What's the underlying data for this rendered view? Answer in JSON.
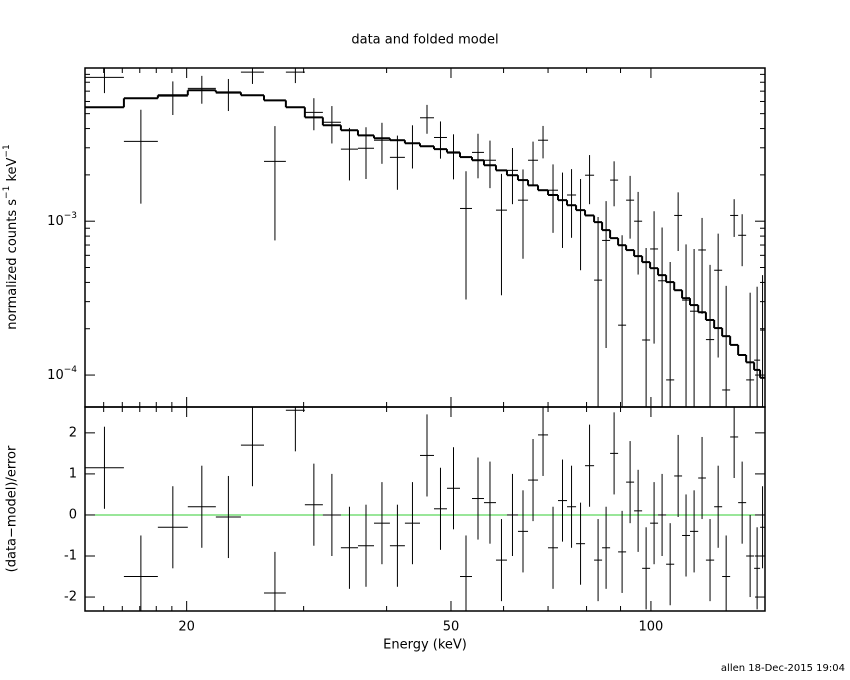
{
  "chart_data": [
    {
      "type": "errorbar",
      "title": "data and folded model",
      "ylabel": [
        "normalized counts s",
        "−1",
        " keV",
        "−1"
      ],
      "ylabel_superscript": [
        false,
        true,
        false,
        true
      ],
      "xscale": "log",
      "yscale": "log",
      "xlim": [
        14.06,
        148.5
      ],
      "ylim": [
        6.2e-05,
        0.0099
      ],
      "yticks": [
        {
          "value": 0.0001,
          "label": "10",
          "exponent": "−4"
        },
        {
          "value": 0.001,
          "label": "10",
          "exponent": "−3"
        }
      ],
      "yticks_minor": [
        0.0002,
        0.0003,
        0.0004,
        0.0005,
        0.0006,
        0.0007,
        0.0008,
        0.0009,
        0.002,
        0.003,
        0.004,
        0.005,
        0.006,
        0.007,
        0.008,
        0.009
      ],
      "color": "#000000",
      "model_color": "#000000",
      "bin_edges": [
        14.06,
        16.09,
        18.1,
        20.08,
        22.13,
        24.14,
        26.15,
        28.21,
        30.13,
        32.07,
        34.14,
        36.22,
        38.29,
        40.46,
        42.62,
        44.91,
        47.14,
        49.31,
        51.59,
        53.78,
        56.06,
        58.44,
        60.71,
        63.07,
        65.31,
        67.61,
        70.0,
        72.46,
        74.76,
        77.14,
        79.58,
        82.11,
        84.42,
        86.8,
        89.24,
        91.75,
        94.33,
        96.99,
        99.71,
        102.5,
        105.4,
        108.4,
        111.4,
        114.5,
        117.8,
        121.0,
        124.5,
        128.0,
        131.6,
        135.3,
        139.1,
        143.0,
        146.0,
        148.5
      ],
      "values": [
        0.0086,
        0.0033,
        0.0065,
        0.0073,
        0.0068,
        0.0093,
        0.00245,
        0.0093,
        0.0051,
        0.0044,
        0.00294,
        0.00298,
        0.00336,
        0.0026,
        0.0032,
        0.0047,
        0.0035,
        0.00277,
        0.00121,
        0.0028,
        0.00249,
        0.00118,
        0.00214,
        0.00137,
        0.00249,
        0.00336,
        0.00159,
        0.00137,
        0.00148,
        0.00118,
        0.00199,
        0.000414,
        0.00075,
        0.00185,
        0.000211,
        0.00137,
        0.001,
        0.000169,
        0.00066,
        0.00041,
        9.3e-05,
        0.00109,
        0.000307,
        0.00026,
        0.00065,
        0.00017,
        0.00048,
        8e-05,
        0.00109,
        0.00081,
        9.3e-05,
        0.000125,
        0.000196
      ],
      "errors": [
        0.0018,
        0.002,
        0.0016,
        0.0015,
        0.0016,
        0.0015,
        0.0017,
        0.0014,
        0.0012,
        0.0012,
        0.0011,
        0.0011,
        0.001,
        0.001,
        0.001,
        0.001,
        0.00095,
        0.0009,
        0.0009,
        0.0009,
        0.00085,
        0.00085,
        0.00085,
        0.0008,
        0.0008,
        0.0008,
        0.00075,
        0.0007,
        0.0007,
        0.0007,
        0.0007,
        0.00065,
        0.0006,
        0.0006,
        0.0006,
        0.0006,
        0.00055,
        0.0005,
        0.0005,
        0.0005,
        0.00045,
        0.00045,
        0.0004,
        0.0004,
        0.0004,
        0.00035,
        0.00035,
        0.0003,
        0.0003,
        0.0003,
        0.00025,
        0.00025,
        0.00025
      ],
      "model_values": [
        0.0055,
        0.00629,
        0.00658,
        0.00709,
        0.00688,
        0.00658,
        0.0061,
        0.0055,
        0.00473,
        0.0042,
        0.0039,
        0.00361,
        0.00346,
        0.00336,
        0.00321,
        0.00307,
        0.00294,
        0.0028,
        0.00261,
        0.00249,
        0.00231,
        0.00214,
        0.00199,
        0.00185,
        0.00171,
        0.00159,
        0.00148,
        0.00137,
        0.00127,
        0.00118,
        0.00109,
        0.000986,
        0.000875,
        0.000776,
        0.000698,
        0.000649,
        0.000593,
        0.000542,
        0.000495,
        0.000446,
        0.000402,
        0.000356,
        0.000316,
        0.000285,
        0.000256,
        0.000228,
        0.000202,
        0.000179,
        0.000157,
        0.000135,
        0.000121,
        0.000108,
        9.6e-05
      ]
    },
    {
      "type": "errorbar",
      "xlabel": "Energy (keV)",
      "ylabel": "(data−model)/error",
      "xscale": "log",
      "xlim": [
        14.06,
        148.5
      ],
      "ylim": [
        -2.34,
        2.63
      ],
      "xticks": [
        20,
        50,
        100
      ],
      "xticks_minor": [
        15,
        16,
        17,
        18,
        19,
        30,
        40,
        60,
        70,
        80,
        90
      ],
      "yticks": [
        -2,
        -1,
        0,
        1,
        2
      ],
      "color": "#000000",
      "reference_line": 0,
      "reference_color": "#33cc33",
      "bin_edges": [
        14.06,
        16.09,
        18.1,
        20.08,
        22.13,
        24.14,
        26.15,
        28.21,
        30.13,
        32.07,
        34.14,
        36.22,
        38.29,
        40.46,
        42.62,
        44.91,
        47.14,
        49.31,
        51.59,
        53.78,
        56.06,
        58.44,
        60.71,
        63.07,
        65.31,
        67.61,
        70.0,
        72.46,
        74.76,
        77.14,
        79.58,
        82.11,
        84.42,
        86.8,
        89.24,
        91.75,
        94.33,
        96.99,
        99.71,
        102.5,
        105.4,
        108.4,
        111.4,
        114.5,
        117.8,
        121.0,
        124.5,
        128.0,
        131.6,
        135.3,
        139.1,
        143.0,
        146.0,
        148.5
      ],
      "values": [
        1.15,
        -1.5,
        -0.3,
        0.2,
        -0.05,
        1.7,
        -1.9,
        2.55,
        0.25,
        0.0,
        -0.8,
        -0.75,
        -0.2,
        -0.75,
        -0.2,
        1.45,
        0.15,
        0.65,
        -1.5,
        0.4,
        0.3,
        -1.1,
        0.0,
        -0.4,
        0.85,
        1.95,
        -0.8,
        0.35,
        0.2,
        -0.7,
        1.2,
        -1.1,
        -0.8,
        1.5,
        -0.9,
        0.8,
        0.1,
        -1.3,
        -0.2,
        0.0,
        -1.2,
        0.95,
        -0.5,
        -0.4,
        0.9,
        -1.1,
        0.2,
        -1.5,
        1.9,
        0.3,
        -1.0,
        -1.3,
        -0.3
      ],
      "errors": [
        1,
        1,
        1,
        1,
        1,
        1,
        1,
        1,
        1,
        1,
        1,
        1,
        1,
        1,
        1,
        1,
        1,
        1,
        1,
        1,
        1,
        1,
        1,
        1,
        1,
        1,
        1,
        1,
        1,
        1,
        1,
        1,
        1,
        1,
        1,
        1,
        1,
        1,
        1,
        1,
        1,
        1,
        1,
        1,
        1,
        1,
        1,
        1,
        1,
        1,
        1,
        1,
        1
      ]
    }
  ],
  "footer": "allen 18-Dec-2015 19:04"
}
